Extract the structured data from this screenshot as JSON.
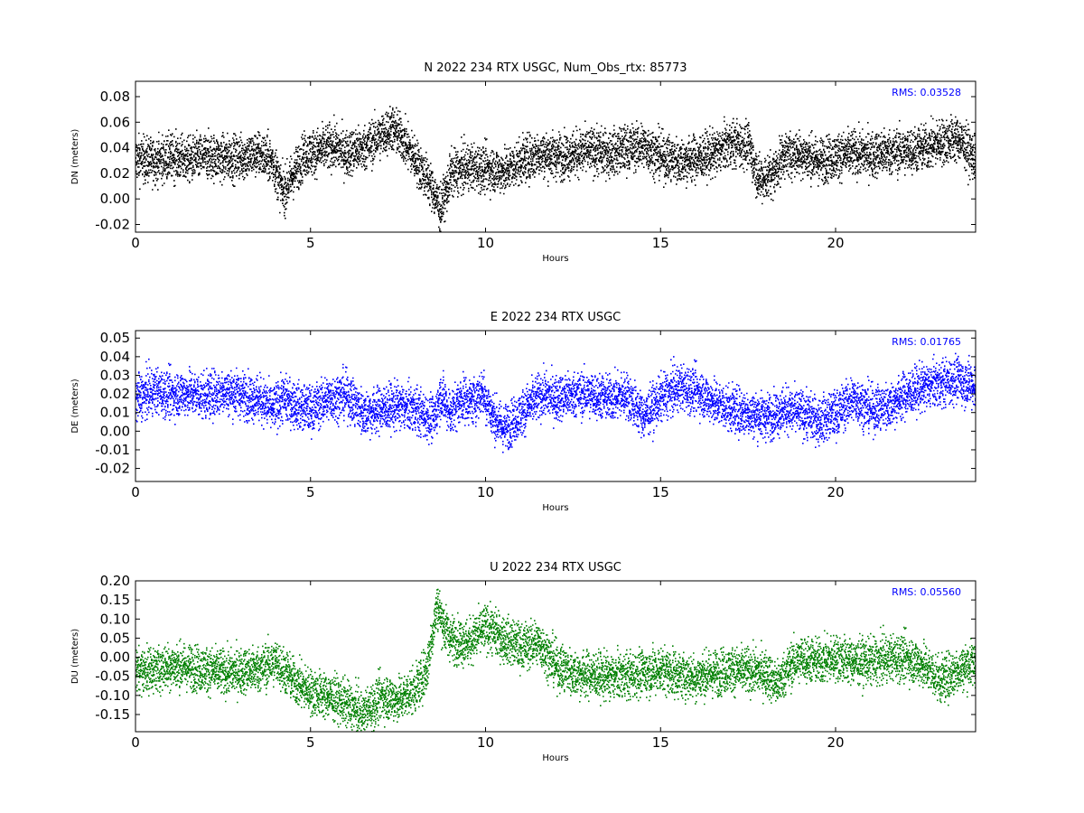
{
  "chart_data": [
    {
      "type": "scatter",
      "title": "N 2022 234 RTX  USGC, Num_Obs_rtx: 85773",
      "xlabel": "Hours",
      "ylabel": "DN (meters)",
      "xlim": [
        0,
        24
      ],
      "ylim": [
        -0.026,
        0.092
      ],
      "xticks": [
        0,
        5,
        10,
        15,
        20
      ],
      "yticks": [
        -0.02,
        0.0,
        0.02,
        0.04,
        0.06,
        0.08
      ],
      "ytick_labels": [
        "-0.02",
        "0.00",
        "0.02",
        "0.04",
        "0.06",
        "0.08"
      ],
      "grid": false,
      "color": "#000000",
      "annotation": {
        "label": "RMS:",
        "value": "0.03528",
        "color": "#0000ff",
        "placement": "top-right"
      },
      "series": [
        {
          "x": [
            0,
            0.5,
            1,
            1.5,
            2,
            2.5,
            3,
            3.5,
            3.9,
            4.2,
            4.5,
            4.8,
            5.2,
            5.6,
            6,
            6.5,
            7,
            7.3,
            7.6,
            8,
            8.4,
            8.7,
            9,
            9.5,
            10,
            10.5,
            11,
            11.5,
            12,
            12.5,
            13,
            13.5,
            14,
            14.5,
            15,
            15.5,
            16,
            16.5,
            17,
            17.5,
            17.8,
            18.2,
            18.5,
            19,
            19.5,
            20,
            20.5,
            21,
            21.5,
            22,
            22.5,
            23,
            23.5,
            24
          ],
          "y": [
            0.032,
            0.03,
            0.033,
            0.031,
            0.034,
            0.032,
            0.033,
            0.036,
            0.03,
            0.005,
            0.02,
            0.035,
            0.038,
            0.042,
            0.036,
            0.04,
            0.05,
            0.056,
            0.048,
            0.03,
            0.012,
            -0.008,
            0.02,
            0.026,
            0.024,
            0.022,
            0.03,
            0.036,
            0.034,
            0.036,
            0.038,
            0.036,
            0.04,
            0.042,
            0.034,
            0.03,
            0.032,
            0.036,
            0.044,
            0.042,
            0.015,
            0.02,
            0.035,
            0.036,
            0.03,
            0.034,
            0.036,
            0.035,
            0.037,
            0.038,
            0.04,
            0.045,
            0.048,
            0.03
          ]
        }
      ]
    },
    {
      "type": "scatter",
      "title": "E 2022 234 RTX  USGC",
      "xlabel": "Hours",
      "ylabel": "DE (meters)",
      "xlim": [
        0,
        24
      ],
      "ylim": [
        -0.027,
        0.054
      ],
      "xticks": [
        0,
        5,
        10,
        15,
        20
      ],
      "yticks": [
        -0.02,
        -0.01,
        0.0,
        0.01,
        0.02,
        0.03,
        0.04,
        0.05
      ],
      "ytick_labels": [
        "-0.02",
        "-0.01",
        "0.00",
        "0.01",
        "0.02",
        "0.03",
        "0.04",
        "0.05"
      ],
      "grid": false,
      "color": "#0000ff",
      "annotation": {
        "label": "RMS:",
        "value": "0.01765",
        "color": "#0000ff",
        "placement": "top-right"
      },
      "series": [
        {
          "x": [
            0,
            0.5,
            1,
            1.5,
            2,
            2.5,
            3,
            3.5,
            3.9,
            4.2,
            4.6,
            5,
            5.5,
            6,
            6.5,
            7,
            7.5,
            8,
            8.5,
            8.7,
            9,
            9.3,
            9.6,
            9.9,
            10.2,
            10.5,
            10.8,
            11.2,
            11.6,
            12,
            12.5,
            13,
            13.5,
            14,
            14.5,
            15,
            15.5,
            16,
            16.5,
            17,
            17.5,
            18,
            18.5,
            19,
            19.5,
            20,
            20.5,
            21,
            21.5,
            22,
            22.5,
            23,
            23.5,
            24
          ],
          "y": [
            0.018,
            0.022,
            0.02,
            0.021,
            0.019,
            0.022,
            0.02,
            0.018,
            0.012,
            0.018,
            0.014,
            0.012,
            0.018,
            0.02,
            0.01,
            0.012,
            0.014,
            0.012,
            0.006,
            0.02,
            0.01,
            0.018,
            0.016,
            0.022,
            0.008,
            0.002,
            0.006,
            0.014,
            0.02,
            0.018,
            0.02,
            0.02,
            0.018,
            0.02,
            0.008,
            0.018,
            0.024,
            0.022,
            0.016,
            0.012,
            0.01,
            0.008,
            0.012,
            0.01,
            0.006,
            0.01,
            0.018,
            0.012,
            0.014,
            0.02,
            0.024,
            0.026,
            0.028,
            0.024
          ]
        }
      ]
    },
    {
      "type": "scatter",
      "title": "U 2022 234 RTX  USGC",
      "xlabel": "Hours",
      "ylabel": "DU (meters)",
      "xlim": [
        0,
        24
      ],
      "ylim": [
        -0.195,
        0.2
      ],
      "xticks": [
        0,
        5,
        10,
        15,
        20
      ],
      "yticks": [
        -0.15,
        -0.1,
        -0.05,
        0.0,
        0.05,
        0.1,
        0.15,
        0.2
      ],
      "ytick_labels": [
        "-0.15",
        "-0.10",
        "-0.05",
        "0.00",
        "0.05",
        "0.10",
        "0.15",
        "0.20"
      ],
      "grid": false,
      "color": "#008000",
      "annotation": {
        "label": "RMS:",
        "value": "0.05560",
        "color": "#0000ff",
        "placement": "top-right"
      },
      "series": [
        {
          "x": [
            0,
            0.5,
            1,
            1.5,
            2,
            2.5,
            3,
            3.5,
            4,
            4.5,
            5,
            5.5,
            6,
            6.5,
            7,
            7.5,
            8,
            8.3,
            8.6,
            8.8,
            9,
            9.5,
            10,
            10.5,
            11,
            11.5,
            12,
            12.5,
            13,
            13.5,
            14,
            14.5,
            15,
            15.5,
            16,
            16.5,
            17,
            17.5,
            18,
            18.3,
            18.7,
            19,
            19.5,
            20,
            20.5,
            21,
            21.5,
            22,
            22.5,
            23,
            23.5,
            24
          ],
          "y": [
            -0.035,
            -0.03,
            -0.02,
            -0.025,
            -0.03,
            -0.04,
            -0.035,
            -0.03,
            -0.01,
            -0.06,
            -0.09,
            -0.1,
            -0.12,
            -0.15,
            -0.1,
            -0.11,
            -0.08,
            -0.03,
            0.14,
            0.08,
            0.05,
            0.04,
            0.08,
            0.05,
            0.03,
            0.04,
            -0.02,
            -0.04,
            -0.045,
            -0.05,
            -0.045,
            -0.04,
            -0.03,
            -0.045,
            -0.05,
            -0.04,
            -0.03,
            -0.035,
            -0.04,
            -0.07,
            -0.02,
            0.0,
            -0.01,
            0.0,
            -0.01,
            -0.01,
            0.0,
            0.0,
            -0.02,
            -0.06,
            -0.03,
            -0.01
          ]
        }
      ]
    }
  ]
}
